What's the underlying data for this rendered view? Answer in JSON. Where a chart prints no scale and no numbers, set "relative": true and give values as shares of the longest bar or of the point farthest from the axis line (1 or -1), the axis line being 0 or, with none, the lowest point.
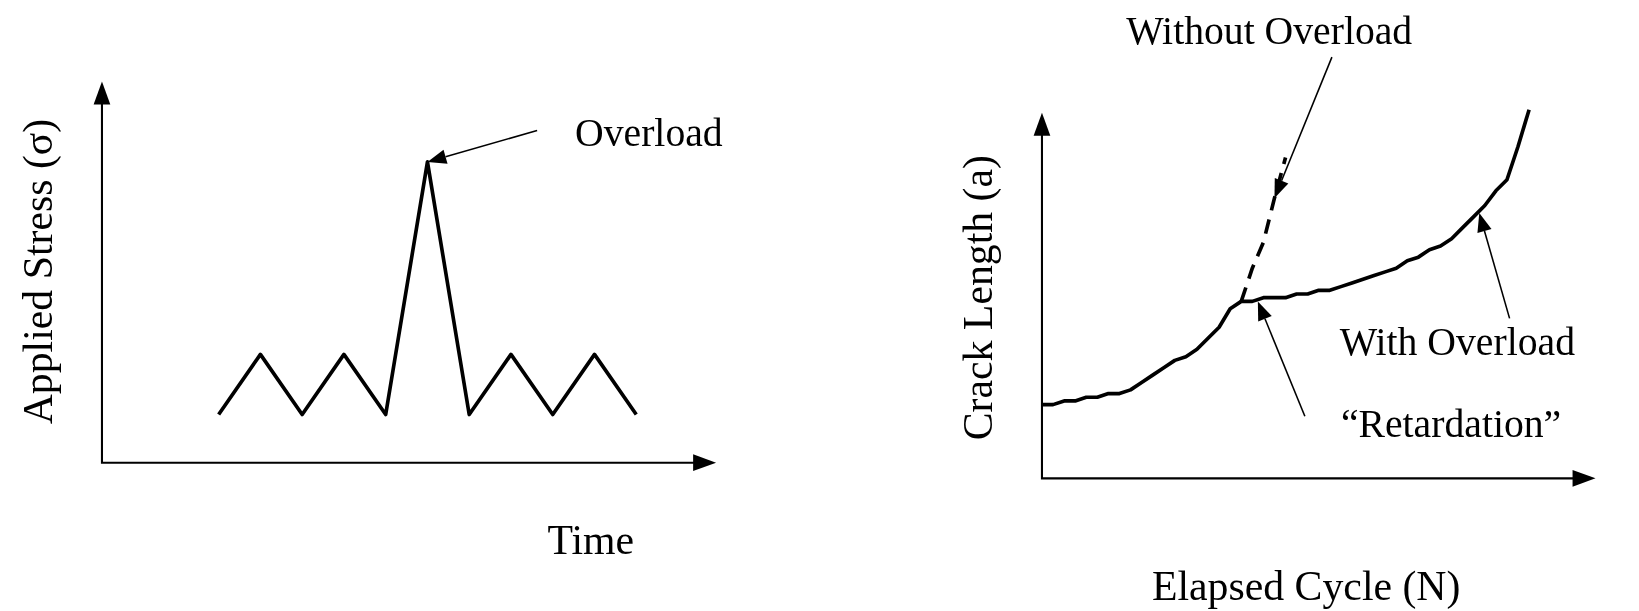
{
  "chart_data": [
    {
      "type": "line",
      "xlabel": "Time",
      "ylabel": "Applied Stress (σ)",
      "relative": true,
      "categories": [
        null,
        null,
        null,
        null,
        null,
        null,
        null,
        null,
        null,
        null,
        null
      ],
      "series": [
        {
          "color": "#000000",
          "values": [
            0.16,
            0.36,
            0.16,
            0.36,
            0.16,
            1,
            0.16,
            0.36,
            0.16,
            0.36,
            0.16
          ]
        }
      ],
      "annotations": [
        "Overload"
      ]
    },
    {
      "type": "line",
      "xlabel": "Elapsed Cycle (N)",
      "ylabel": "Crack Length (a)",
      "relative": true,
      "categories": [
        null,
        null,
        null,
        null,
        null,
        null,
        null,
        null,
        null,
        null,
        null,
        null,
        null,
        null,
        null,
        null,
        null,
        null,
        null,
        null,
        null,
        null,
        null,
        null,
        null,
        null,
        null,
        null,
        null,
        null,
        null,
        null,
        null,
        null,
        null,
        null,
        null,
        null,
        null,
        null,
        null,
        null,
        null,
        null,
        null
      ],
      "series": [
        {
          "name": "Without Overload",
          "color": "#000000",
          "line_style": "dashed",
          "values": [
            null,
            null,
            null,
            null,
            null,
            null,
            null,
            null,
            null,
            null,
            null,
            null,
            null,
            null,
            null,
            null,
            null,
            null,
            0.48,
            0.57,
            0.64,
            0.76,
            0.87,
            null,
            null,
            null,
            null,
            null,
            null,
            null,
            null,
            null,
            null,
            null,
            null,
            null,
            null,
            null,
            null,
            null,
            null,
            null,
            null,
            null,
            null
          ]
        },
        {
          "name": "With Overload",
          "color": "#000000",
          "line_style": "solid",
          "values": [
            0.2,
            0.2,
            0.21,
            0.21,
            0.22,
            0.22,
            0.23,
            0.23,
            0.24,
            0.26,
            0.28,
            0.3,
            0.32,
            0.33,
            0.35,
            0.38,
            0.41,
            0.46,
            0.48,
            0.48,
            0.49,
            0.49,
            0.49,
            0.5,
            0.5,
            0.51,
            0.51,
            0.52,
            0.53,
            0.54,
            0.55,
            0.56,
            0.57,
            0.59,
            0.6,
            0.62,
            0.63,
            0.65,
            0.68,
            0.71,
            0.74,
            0.78,
            0.81,
            0.9,
            1
          ]
        }
      ],
      "annotations": [
        "“Retardation”"
      ]
    }
  ]
}
